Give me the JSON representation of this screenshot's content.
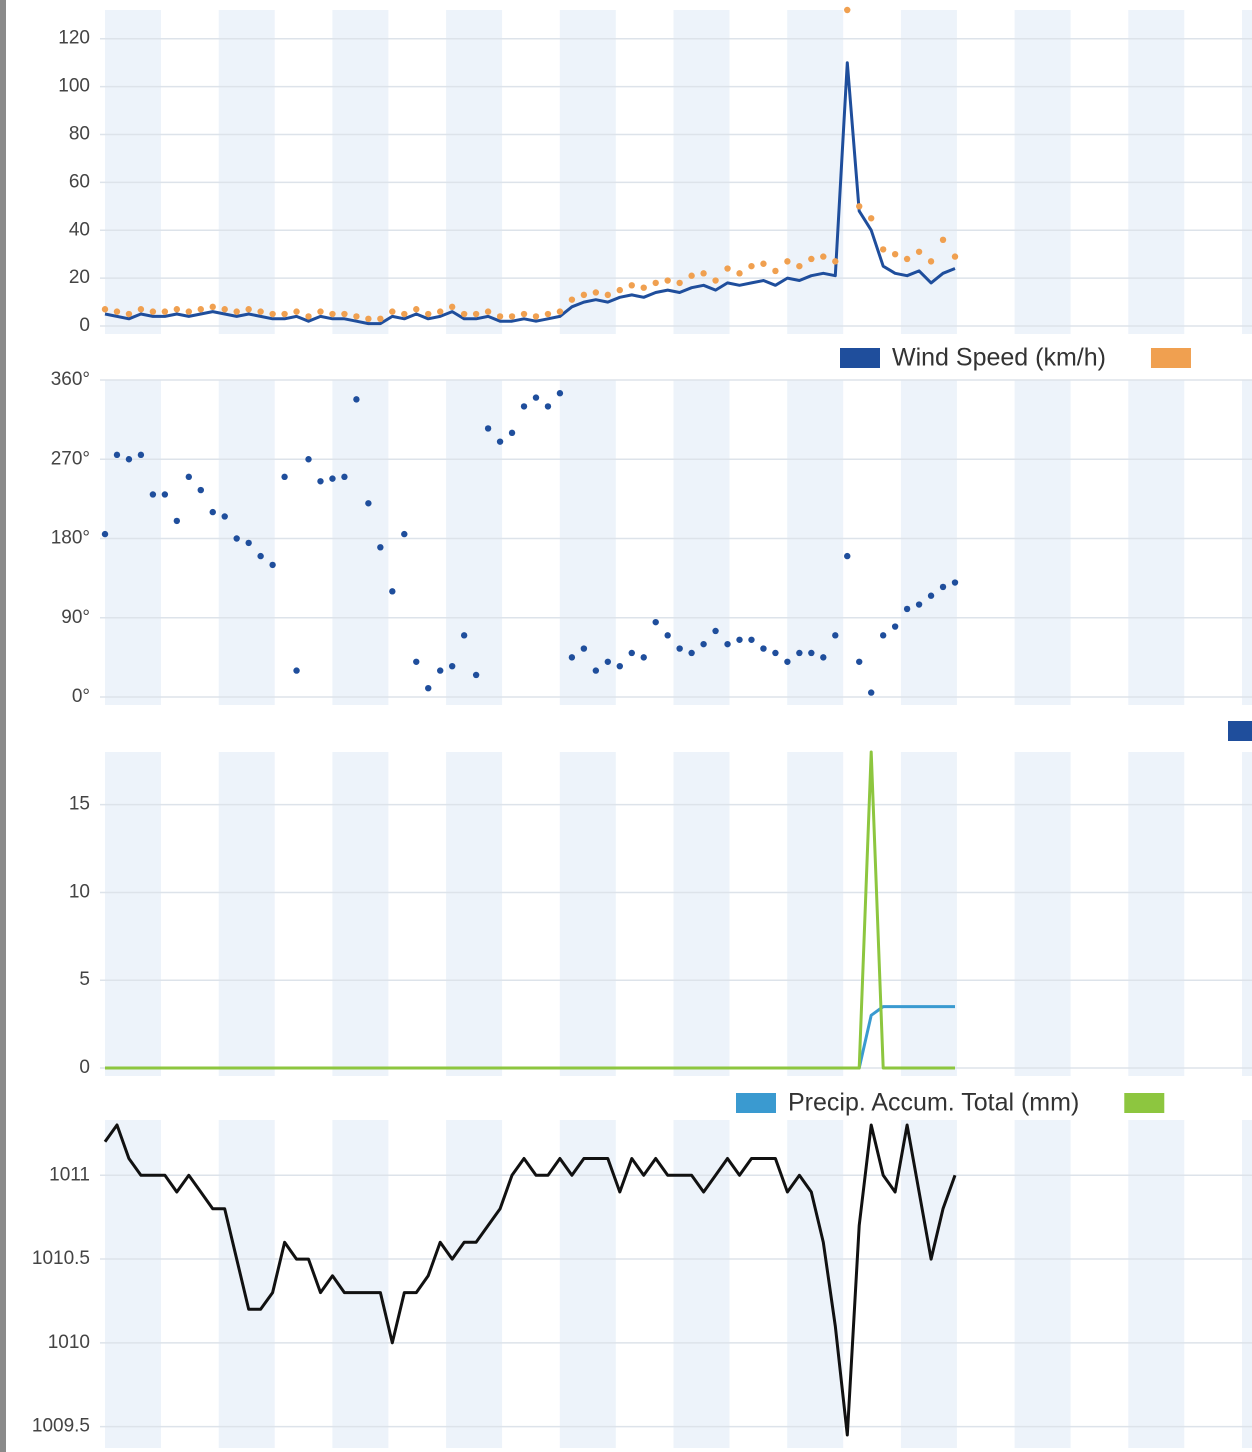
{
  "chart_data": [
    {
      "type": "line",
      "ylim": [
        0,
        132
      ],
      "yticks": [
        0,
        20,
        40,
        60,
        80,
        100,
        120
      ],
      "grid": true,
      "legend": "bottom-right",
      "series": [
        {
          "name": "Wind Speed (km/h)",
          "color": "#1f4e9c",
          "values": [
            5,
            4,
            3,
            5,
            4,
            4,
            5,
            4,
            5,
            6,
            5,
            4,
            5,
            4,
            3,
            3,
            4,
            2,
            4,
            3,
            3,
            2,
            1,
            1,
            4,
            3,
            5,
            3,
            4,
            6,
            3,
            3,
            4,
            2,
            2,
            3,
            2,
            3,
            4,
            8,
            10,
            11,
            10,
            12,
            13,
            12,
            14,
            15,
            14,
            16,
            17,
            15,
            18,
            17,
            18,
            19,
            17,
            20,
            19,
            21,
            22,
            21,
            110,
            48,
            40,
            25,
            22,
            21,
            23,
            18,
            22,
            24
          ]
        },
        {
          "type": "scatter",
          "color": "#f0a050",
          "values": [
            7,
            6,
            5,
            7,
            6,
            6,
            7,
            6,
            7,
            8,
            7,
            6,
            7,
            6,
            5,
            5,
            6,
            4,
            6,
            5,
            5,
            4,
            3,
            3,
            6,
            5,
            7,
            5,
            6,
            8,
            5,
            5,
            6,
            4,
            4,
            5,
            4,
            5,
            6,
            11,
            13,
            14,
            13,
            15,
            17,
            16,
            18,
            19,
            18,
            21,
            22,
            19,
            24,
            22,
            25,
            26,
            23,
            27,
            25,
            28,
            29,
            27,
            132,
            50,
            45,
            32,
            30,
            28,
            31,
            27,
            36,
            29
          ]
        }
      ]
    },
    {
      "type": "scatter",
      "ylim": [
        0,
        360
      ],
      "grid": true,
      "legend": "right",
      "yticks": [
        {
          "value": 0,
          "label": "0°"
        },
        {
          "value": 90,
          "label": "90°"
        },
        {
          "value": 180,
          "label": "180°"
        },
        {
          "value": 270,
          "label": "270°"
        },
        {
          "value": 360,
          "label": "360°"
        }
      ],
      "series": [
        {
          "color": "#1f4e9c",
          "values": [
            185,
            275,
            270,
            275,
            230,
            230,
            200,
            250,
            235,
            210,
            205,
            180,
            175,
            160,
            150,
            250,
            30,
            270,
            245,
            248,
            250,
            338,
            220,
            170,
            120,
            185,
            40,
            10,
            30,
            35,
            70,
            25,
            305,
            290,
            300,
            330,
            340,
            330,
            345,
            45,
            55,
            30,
            40,
            35,
            50,
            45,
            85,
            70,
            55,
            50,
            60,
            75,
            60,
            65,
            65,
            55,
            50,
            40,
            50,
            50,
            45,
            70,
            160,
            40,
            5,
            70,
            80,
            100,
            105,
            115,
            125,
            130
          ]
        }
      ]
    },
    {
      "type": "line",
      "ylim": [
        0,
        18
      ],
      "yticks": [
        0,
        5,
        10,
        15
      ],
      "grid": true,
      "legend": "bottom-right",
      "series": [
        {
          "name": "Precip. Accum. Total (mm)",
          "color": "#3a9ad0",
          "values": [
            0,
            0,
            0,
            0,
            0,
            0,
            0,
            0,
            0,
            0,
            0,
            0,
            0,
            0,
            0,
            0,
            0,
            0,
            0,
            0,
            0,
            0,
            0,
            0,
            0,
            0,
            0,
            0,
            0,
            0,
            0,
            0,
            0,
            0,
            0,
            0,
            0,
            0,
            0,
            0,
            0,
            0,
            0,
            0,
            0,
            0,
            0,
            0,
            0,
            0,
            0,
            0,
            0,
            0,
            0,
            0,
            0,
            0,
            0,
            0,
            0,
            0,
            0,
            0,
            3,
            3.5,
            3.5,
            3.5,
            3.5,
            3.5,
            3.5,
            3.5
          ]
        },
        {
          "color": "#8dc63f",
          "values": [
            0,
            0,
            0,
            0,
            0,
            0,
            0,
            0,
            0,
            0,
            0,
            0,
            0,
            0,
            0,
            0,
            0,
            0,
            0,
            0,
            0,
            0,
            0,
            0,
            0,
            0,
            0,
            0,
            0,
            0,
            0,
            0,
            0,
            0,
            0,
            0,
            0,
            0,
            0,
            0,
            0,
            0,
            0,
            0,
            0,
            0,
            0,
            0,
            0,
            0,
            0,
            0,
            0,
            0,
            0,
            0,
            0,
            0,
            0,
            0,
            0,
            0,
            0,
            0,
            18,
            0,
            0,
            0,
            0,
            0,
            0,
            0
          ]
        }
      ]
    },
    {
      "type": "line",
      "ylim": [
        1009.42,
        1011.33
      ],
      "yticks": [
        1009.5,
        1010,
        1010.5,
        1011
      ],
      "grid": true,
      "series": [
        {
          "color": "#111111",
          "values": [
            1011.2,
            1011.3,
            1011.1,
            1011.0,
            1011.0,
            1011.0,
            1010.9,
            1011.0,
            1010.9,
            1010.8,
            1010.8,
            1010.5,
            1010.2,
            1010.2,
            1010.3,
            1010.6,
            1010.5,
            1010.5,
            1010.3,
            1010.4,
            1010.3,
            1010.3,
            1010.3,
            1010.3,
            1010.0,
            1010.3,
            1010.3,
            1010.4,
            1010.6,
            1010.5,
            1010.6,
            1010.6,
            1010.7,
            1010.8,
            1011.0,
            1011.1,
            1011.0,
            1011.0,
            1011.1,
            1011.0,
            1011.1,
            1011.1,
            1011.1,
            1010.9,
            1011.1,
            1011.0,
            1011.1,
            1011.0,
            1011.0,
            1011.0,
            1010.9,
            1011.0,
            1011.1,
            1011.0,
            1011.1,
            1011.1,
            1011.1,
            1010.9,
            1011.0,
            1010.9,
            1010.6,
            1010.1,
            1009.45,
            1010.7,
            1011.3,
            1011.0,
            1010.9,
            1011.3,
            1010.9,
            1010.5,
            1010.8,
            1011.0
          ]
        }
      ]
    }
  ]
}
